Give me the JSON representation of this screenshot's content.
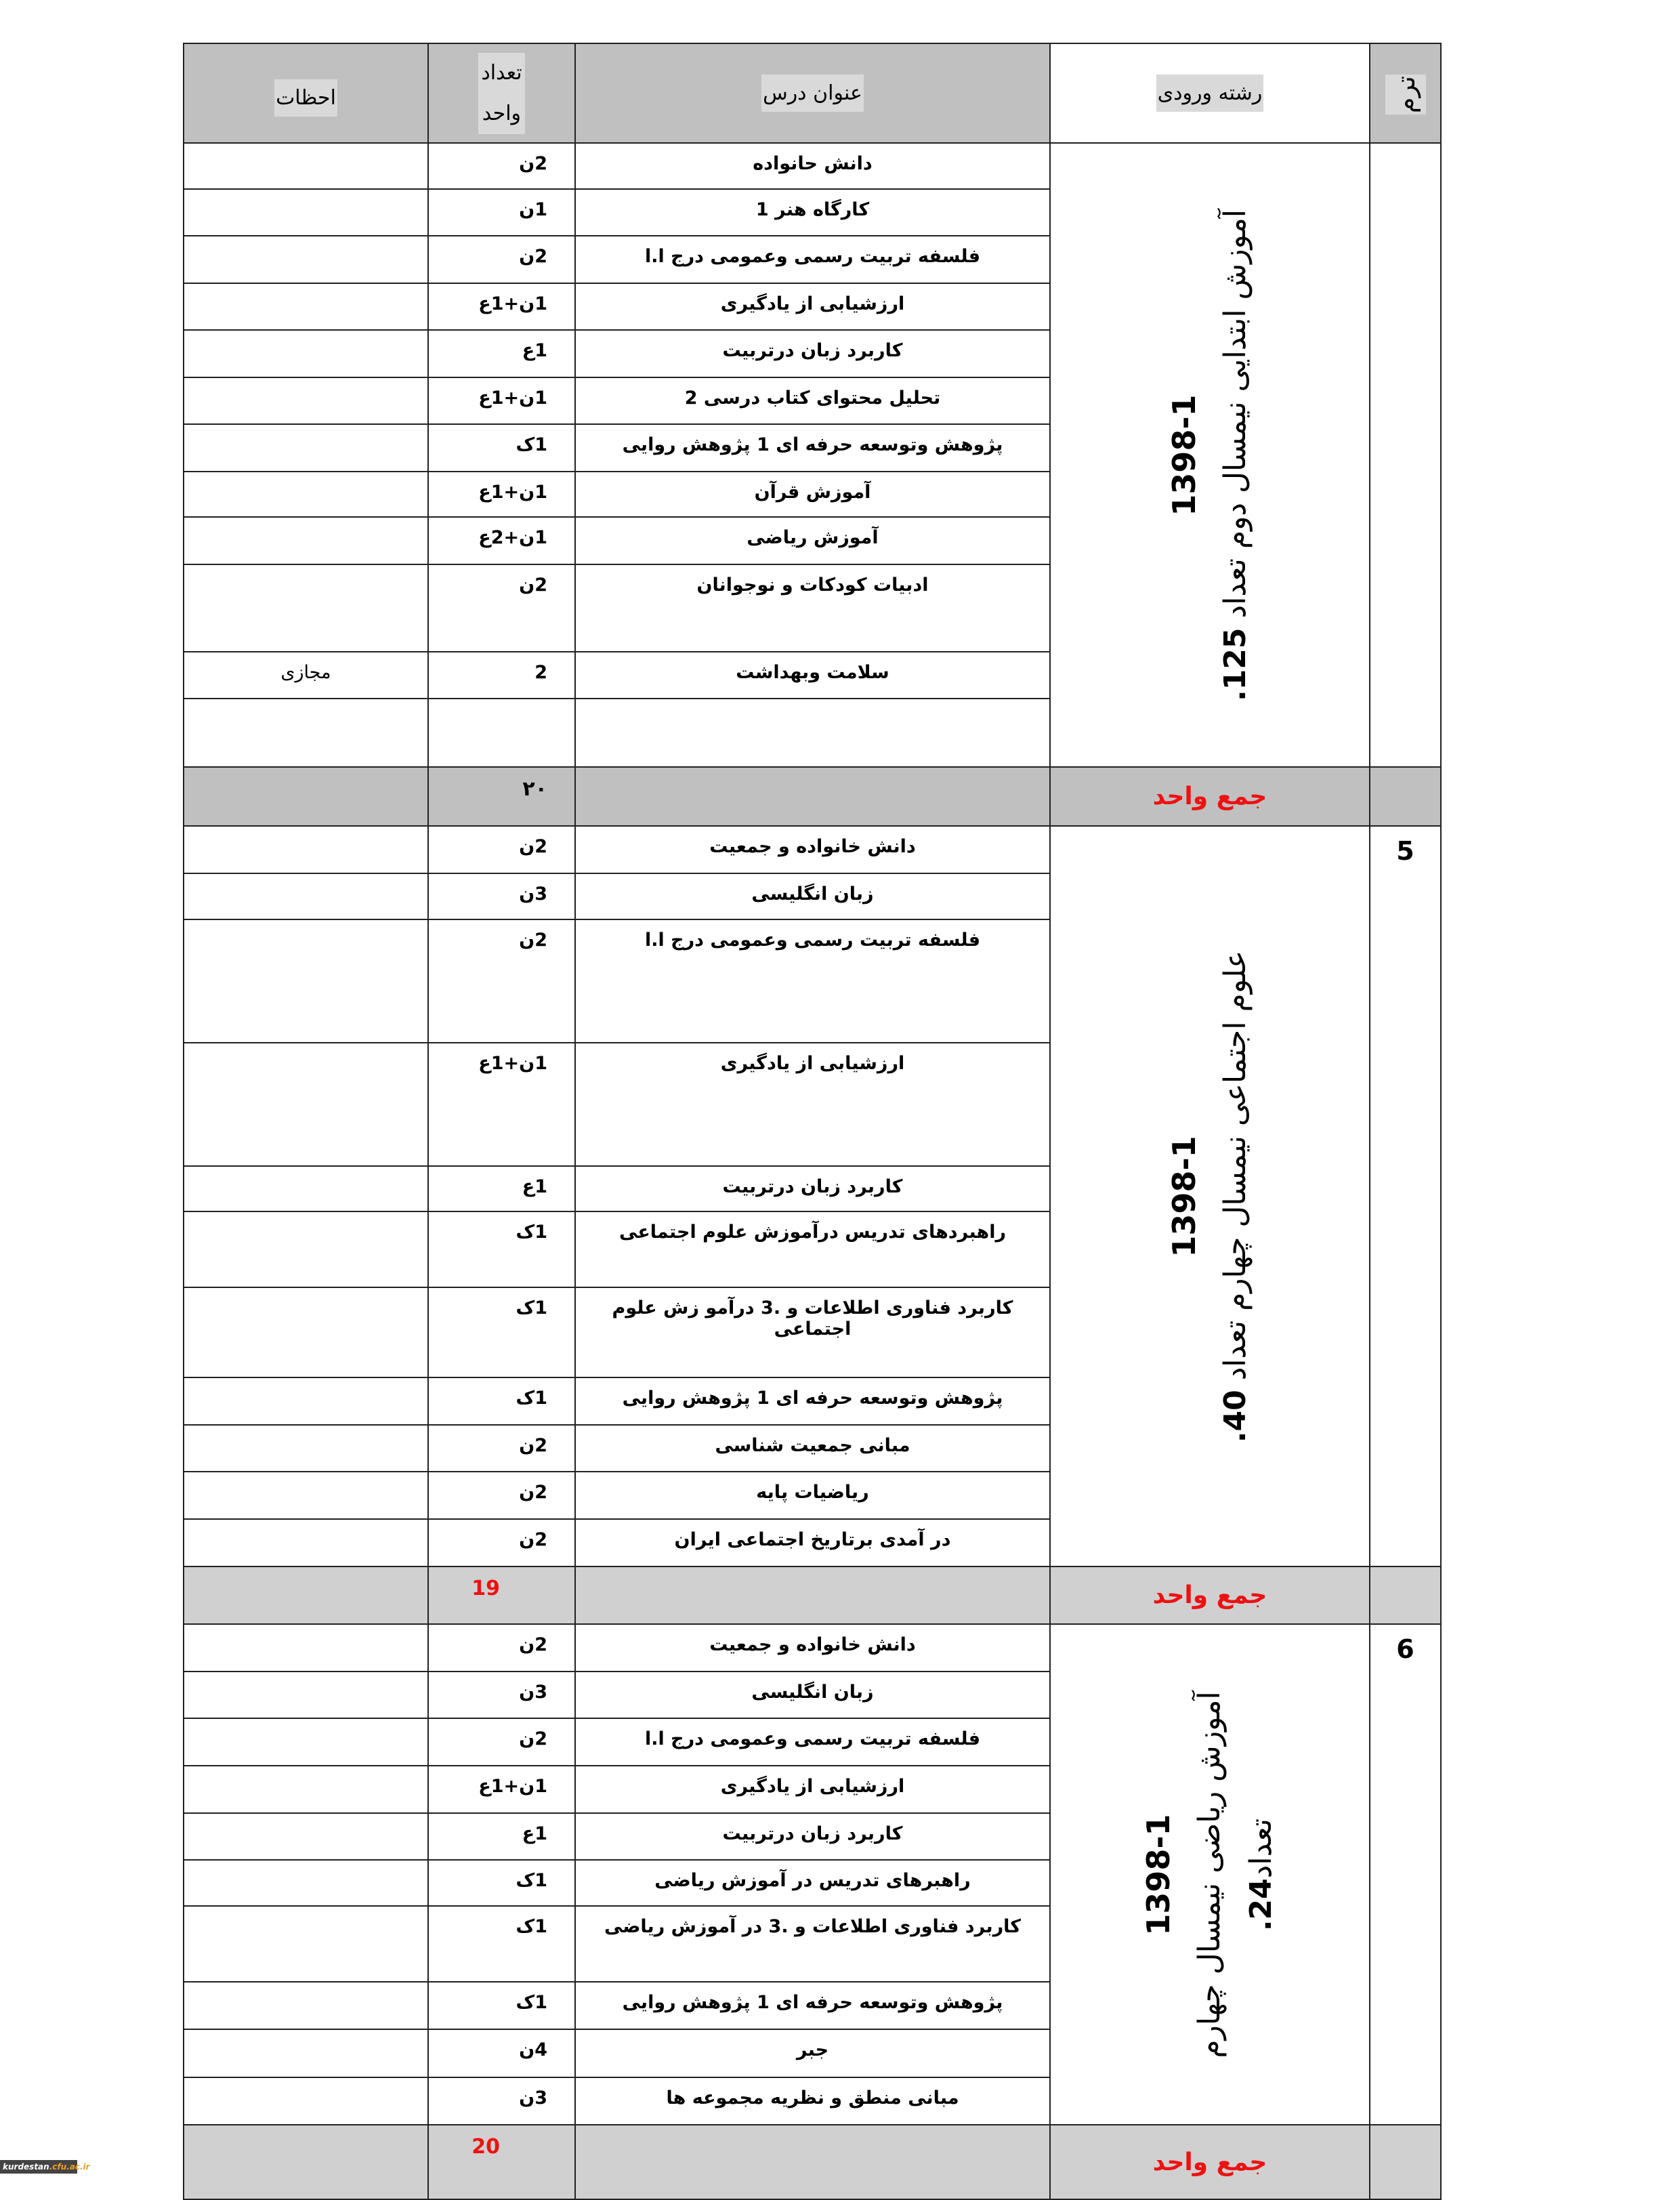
{
  "headers": {
    "term": "ترم",
    "major": "رشته ورودی",
    "title": "عنوان درس",
    "units_line1": "تعداد",
    "units_line2": "واحد",
    "notes": "احظات"
  },
  "sections": [
    {
      "term": "",
      "major": {
        "year": "1398-1",
        "line1": "آموزش ابتدایی نیمسال دوم تعداد",
        "count": "125.",
        "line2": ""
      },
      "courses": [
        {
          "title": "دانش حانواده",
          "units": "2ن",
          "note": ""
        },
        {
          "title": "کارگاه هنر 1",
          "units": "1ن",
          "note": ""
        },
        {
          "title": "فلسفه تربیت رسمی وعمومی درج ا.ا",
          "units": "2ن",
          "note": ""
        },
        {
          "title": "ارزشیابی از یادگیری",
          "units": "1ن+1ع",
          "note": ""
        },
        {
          "title": "کاربرد زبان درتربیت",
          "units": "1ع",
          "note": ""
        },
        {
          "title": "تحلیل محتوای کتاب درسی 2",
          "units": "1ن+1ع",
          "note": ""
        },
        {
          "title": "پژوهش وتوسعه حرفه ای 1 پژوهش روایی",
          "units": "1ک",
          "note": ""
        },
        {
          "title": "آموزش قرآن",
          "units": "1ن+1ع",
          "note": ""
        },
        {
          "title": "آموزش ریاضی",
          "units": "1ن+2ع",
          "note": ""
        },
        {
          "title": "ادبیات کودکات و نوجوانان",
          "units": "2ن",
          "note": ""
        },
        {
          "title": "سلامت وبهداشت",
          "units": "2",
          "note": "مجازی"
        },
        {
          "title": "",
          "units": "",
          "note": ""
        }
      ],
      "total_label": "جمع واحد",
      "total_value": "٢٠",
      "total_value_color": "#000000"
    },
    {
      "term": "5",
      "major": {
        "year": "1398-1",
        "line1": "علوم اجتماعی نیمسال چهارم تعداد",
        "count": "40.",
        "line2": ""
      },
      "courses": [
        {
          "title": "دانش خانواده و جمعیت",
          "units": "2ن",
          "note": ""
        },
        {
          "title": "زبان انگلیسی",
          "units": "3ن",
          "note": ""
        },
        {
          "title": "فلسفه تربیت رسمی وعمومی درج ا.ا",
          "units": "2ن",
          "note": ""
        },
        {
          "title": "ارزشیابی از یادگیری",
          "units": "1ن+1ع",
          "note": ""
        },
        {
          "title": "کاربرد زبان درتربیت",
          "units": "1ع",
          "note": ""
        },
        {
          "title": "راهبردهای تدریس درآموزش علوم اجتماعی",
          "units": "1ک",
          "note": ""
        },
        {
          "title": "کاربرد فناوری اطلاعات و .3 درآمو زش علوم اجتماعی",
          "units": "1ک",
          "note": ""
        },
        {
          "title": "پژوهش وتوسعه حرفه ای 1 پژوهش روایی",
          "units": "1ک",
          "note": ""
        },
        {
          "title": "مبانی جمعیت شناسی",
          "units": "2ن",
          "note": ""
        },
        {
          "title": "ریاضیات پایه",
          "units": "2ن",
          "note": ""
        },
        {
          "title": "در آمدی برتاریخ اجتماعی ایران",
          "units": "2ن",
          "note": ""
        }
      ],
      "total_label": "جمع واحد",
      "total_value": "19",
      "total_value_color": "#ee1111"
    },
    {
      "term": "6",
      "major": {
        "year": "1398-1",
        "line1": "آموزش ریاضی نیمسال چهارم",
        "count": "24.",
        "line2": "تعداد"
      },
      "courses": [
        {
          "title": "دانش خانواده و جمعیت",
          "units": "2ن",
          "note": ""
        },
        {
          "title": "زبان انگلیسی",
          "units": "3ن",
          "note": ""
        },
        {
          "title": "فلسفه تربیت رسمی وعمومی درج ا.ا",
          "units": "2ن",
          "note": ""
        },
        {
          "title": "ارزشیابی از یادگیری",
          "units": "1ن+1ع",
          "note": ""
        },
        {
          "title": "کاربرد زبان درتربیت",
          "units": "1ع",
          "note": ""
        },
        {
          "title": "راهبرهای تدریس در آموزش ریاضی",
          "units": "1ک",
          "note": ""
        },
        {
          "title": "کاربرد فناوری اطلاعات و .3 در آموزش ریاضی",
          "units": "1ک",
          "note": ""
        },
        {
          "title": "پژوهش وتوسعه حرفه ای 1 پژوهش روایی",
          "units": "1ک",
          "note": ""
        },
        {
          "title": "جبر",
          "units": "4ن",
          "note": ""
        },
        {
          "title": "مبانی منطق و نظریه مجموعه ها",
          "units": "3ن",
          "note": ""
        }
      ],
      "total_label": "جمع واحد",
      "total_value": "20",
      "total_value_color": "#ee1111"
    }
  ],
  "colors": {
    "header_bg": "#c0c0c0",
    "total_label": "#ee1111"
  },
  "watermark": {
    "prefix": "kurdestan",
    "suffix": ".cfu.ac.ir"
  }
}
